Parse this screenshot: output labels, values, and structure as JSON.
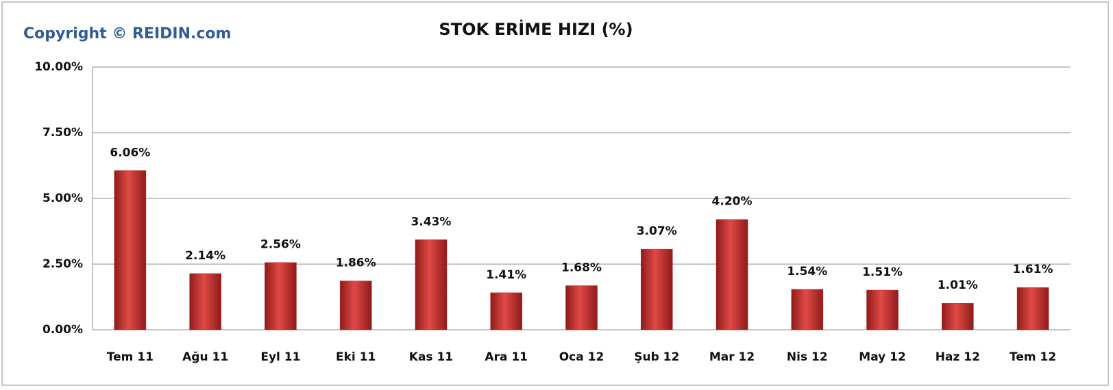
{
  "chart_data": {
    "type": "bar",
    "title": "STOK ERİME HIZI (%)",
    "watermark": "Copyright © REIDIN.com",
    "categories": [
      "Tem 11",
      "Ağu 11",
      "Eyl 11",
      "Eki 11",
      "Kas 11",
      "Ara 11",
      "Oca 12",
      "Şub 12",
      "Mar 12",
      "Nis 12",
      "May 12",
      "Haz 12",
      "Tem 12"
    ],
    "values": [
      6.06,
      2.14,
      2.56,
      1.86,
      3.43,
      1.41,
      1.68,
      3.07,
      4.2,
      1.54,
      1.51,
      1.01,
      1.61
    ],
    "value_labels": [
      "6.06%",
      "2.14%",
      "2.56%",
      "1.86%",
      "3.43%",
      "1.41%",
      "1.68%",
      "3.07%",
      "4.20%",
      "1.54%",
      "1.51%",
      "1.01%",
      "1.61%"
    ],
    "color": "#c0302e",
    "ylim": [
      0,
      10
    ],
    "yticks": [
      {
        "value": 0,
        "label": "0.00%"
      },
      {
        "value": 2.5,
        "label": "2.50%"
      },
      {
        "value": 5,
        "label": "5.00%"
      },
      {
        "value": 7.5,
        "label": "7.50%"
      },
      {
        "value": 10,
        "label": "10.00%"
      }
    ],
    "grid": true
  }
}
